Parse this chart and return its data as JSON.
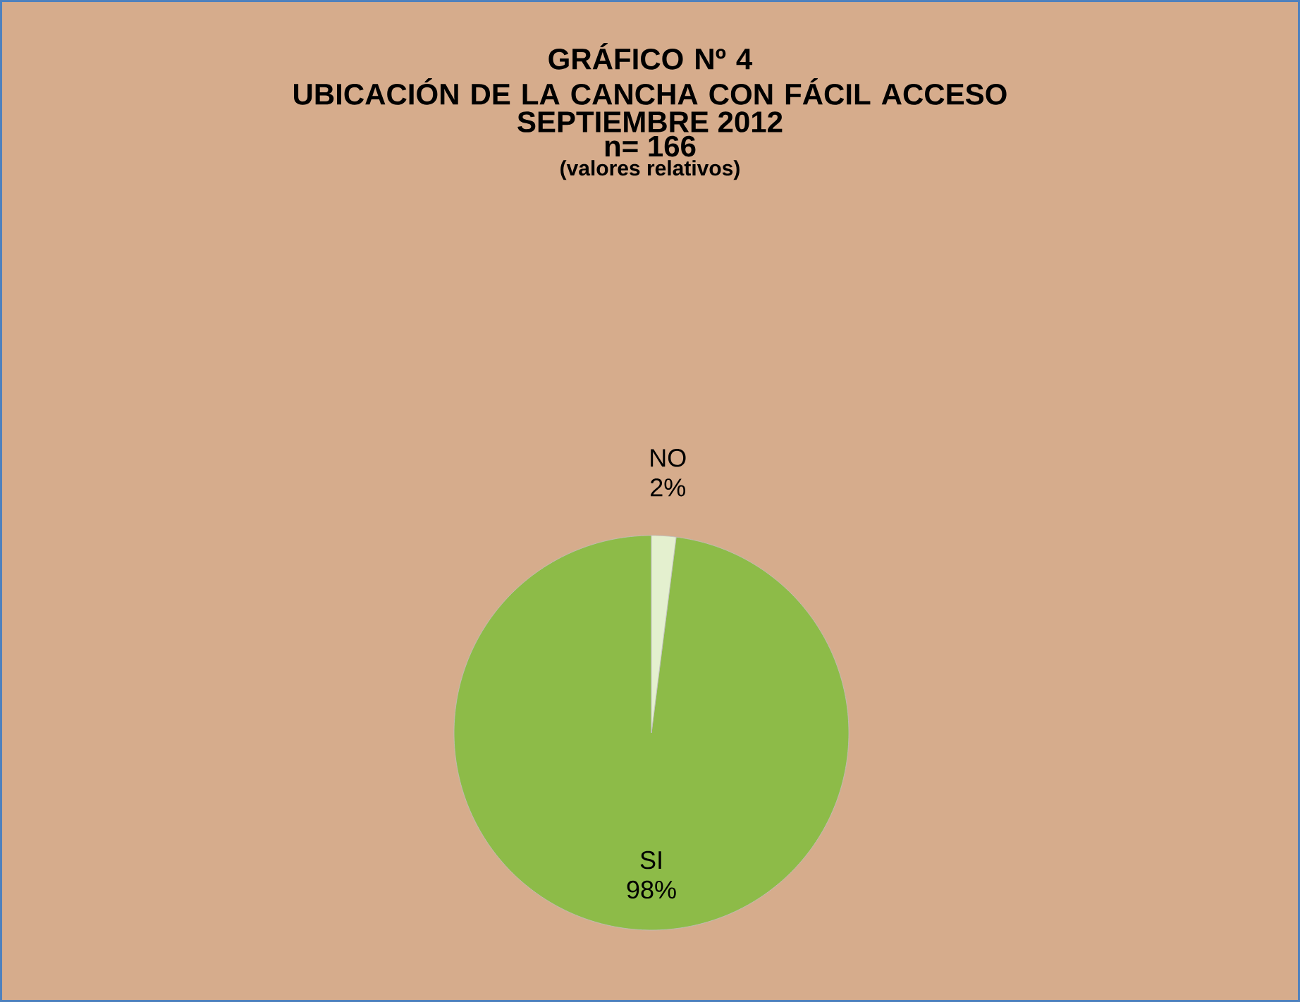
{
  "chart_data": {
    "type": "pie",
    "title": "GRÁFICO Nº 4",
    "subtitle": "UBICACIÓN DE LA CANCHA CON FÁCIL ACCESO",
    "annotations": [
      "SEPTIEMBRE 2012",
      "n= 166",
      "(valores relativos)"
    ],
    "categories": [
      "SI",
      "NO"
    ],
    "values": [
      98,
      2
    ],
    "colors": [
      "#8dbb48",
      "#e4f0cf"
    ],
    "value_labels": [
      "98%",
      "2%"
    ]
  }
}
